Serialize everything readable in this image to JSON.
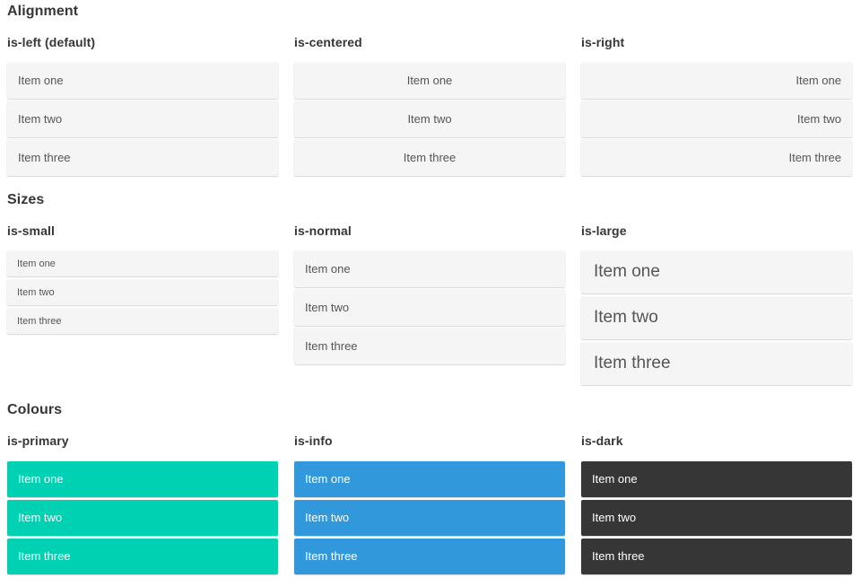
{
  "colors": {
    "primary": "#00d1b2",
    "info": "#3298dc",
    "dark": "#363636",
    "neutral_item_bg": "#f5f5f5",
    "item_text": "#555555",
    "heading_text": "#363636"
  },
  "sections": [
    {
      "title": "Alignment",
      "groups": [
        {
          "label": "is-left (default)",
          "variant": "align-left",
          "items": [
            "Item one",
            "Item two",
            "Item three"
          ]
        },
        {
          "label": "is-centered",
          "variant": "align-centered",
          "items": [
            "Item one",
            "Item two",
            "Item three"
          ]
        },
        {
          "label": "is-right",
          "variant": "align-right",
          "items": [
            "Item one",
            "Item two",
            "Item three"
          ]
        }
      ]
    },
    {
      "title": "Sizes",
      "groups": [
        {
          "label": "is-small",
          "variant": "size-small",
          "items": [
            "Item one",
            "Item two",
            "Item three"
          ]
        },
        {
          "label": "is-normal",
          "variant": "size-normal",
          "items": [
            "Item one",
            "Item two",
            "Item three"
          ]
        },
        {
          "label": "is-large",
          "variant": "size-large",
          "items": [
            "Item one",
            "Item two",
            "Item three"
          ]
        }
      ]
    },
    {
      "title": "Colours",
      "groups": [
        {
          "label": "is-primary",
          "variant": "color-primary",
          "items": [
            "Item one",
            "Item two",
            "Item three"
          ]
        },
        {
          "label": "is-info",
          "variant": "color-info",
          "items": [
            "Item one",
            "Item two",
            "Item three"
          ]
        },
        {
          "label": "is-dark",
          "variant": "color-dark",
          "items": [
            "Item one",
            "Item two",
            "Item three"
          ]
        }
      ]
    }
  ]
}
